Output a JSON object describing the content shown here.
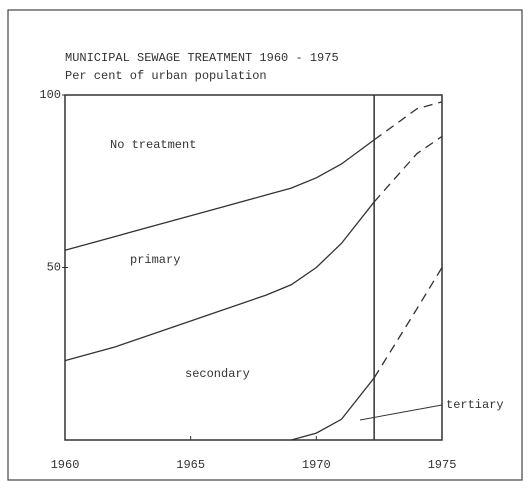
{
  "chart_data": {
    "type": "line",
    "title": "MUNICIPAL SEWAGE TREATMENT 1960 - 1975",
    "subtitle": "Per cent of urban population",
    "x": [
      1960,
      1962,
      1964,
      1966,
      1968,
      1969,
      1970,
      1971,
      1972.3,
      1974,
      1975
    ],
    "series": [
      {
        "color": "#333333",
        "values": [
          55,
          59,
          63,
          67,
          71,
          73,
          76,
          80,
          87,
          96,
          98
        ]
      },
      {
        "color": "#333333",
        "values": [
          23,
          27,
          32,
          37,
          42,
          45,
          50,
          57,
          69,
          83,
          88
        ]
      },
      {
        "color": "#333333",
        "values": [
          null,
          null,
          null,
          null,
          null,
          0,
          2,
          6,
          18,
          38,
          50
        ]
      }
    ],
    "projection_x": 1972.3,
    "annotations": [
      "No treatment",
      "primary",
      "secondary",
      "tertiary"
    ],
    "xlim": [
      1960,
      1975
    ],
    "xticks": [
      1960,
      1965,
      1970,
      1975
    ],
    "ylim": [
      0,
      100
    ],
    "yticks": [
      50,
      100
    ]
  }
}
